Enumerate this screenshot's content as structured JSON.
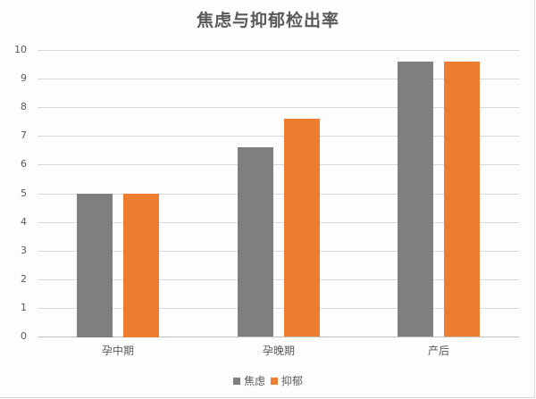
{
  "chart_data": {
    "type": "bar",
    "title": "焦虑与抑郁检出率",
    "categories": [
      "孕中期",
      "孕晚期",
      "产后"
    ],
    "series": [
      {
        "name": "焦虑",
        "color": "#7f7f7f",
        "values": [
          5.0,
          6.6,
          9.6
        ]
      },
      {
        "name": "抑郁",
        "color": "#ed7d31",
        "values": [
          5.0,
          7.6,
          9.6
        ]
      }
    ],
    "xlabel": "",
    "ylabel": "",
    "ylim": [
      0,
      10
    ],
    "yticks": [
      0,
      1,
      2,
      3,
      4,
      5,
      6,
      7,
      8,
      9,
      10
    ],
    "grid": true,
    "legend_position": "bottom"
  },
  "title": "焦虑与抑郁检出率",
  "legend": {
    "items": [
      {
        "label": "焦虑",
        "color": "#7f7f7f"
      },
      {
        "label": "抑郁",
        "color": "#ed7d31"
      }
    ]
  }
}
